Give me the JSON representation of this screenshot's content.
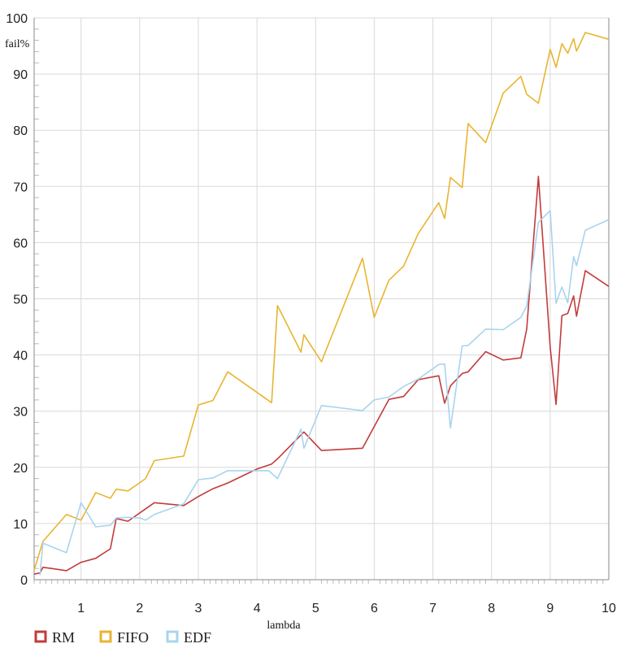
{
  "chart_data": {
    "type": "line",
    "title": "",
    "xlabel": "lambda",
    "ylabel": "fail%",
    "xlim": [
      0.2,
      10
    ],
    "ylim": [
      0,
      100
    ],
    "x_ticks": [
      1,
      2,
      3,
      4,
      5,
      6,
      7,
      8,
      9,
      10
    ],
    "y_ticks": [
      0,
      10,
      20,
      30,
      40,
      50,
      60,
      70,
      80,
      90,
      100
    ],
    "grid": true,
    "legend_position": "bottom-left",
    "series": [
      {
        "name": "RM",
        "color": "#c23b3b",
        "points": [
          [
            0.2,
            1
          ],
          [
            0.3,
            1.2
          ],
          [
            0.35,
            2.2
          ],
          [
            0.5,
            2
          ],
          [
            0.75,
            1.6
          ],
          [
            1.0,
            3.1
          ],
          [
            1.25,
            3.8
          ],
          [
            1.5,
            5.5
          ],
          [
            1.6,
            10.9
          ],
          [
            1.8,
            10.4
          ],
          [
            2.25,
            13.7
          ],
          [
            2.75,
            13.2
          ],
          [
            3.0,
            14.8
          ],
          [
            3.25,
            16.2
          ],
          [
            3.5,
            17.2
          ],
          [
            4.0,
            19.7
          ],
          [
            4.25,
            20.6
          ],
          [
            4.35,
            21.5
          ],
          [
            4.8,
            26.3
          ],
          [
            5.1,
            23
          ],
          [
            5.8,
            23.4
          ],
          [
            6.25,
            32.1
          ],
          [
            6.5,
            32.6
          ],
          [
            6.75,
            35.6
          ],
          [
            7.1,
            36.3
          ],
          [
            7.2,
            31.4
          ],
          [
            7.3,
            34.5
          ],
          [
            7.5,
            36.7
          ],
          [
            7.6,
            37
          ],
          [
            7.9,
            40.6
          ],
          [
            8.2,
            39.1
          ],
          [
            8.5,
            39.5
          ],
          [
            8.6,
            44.6
          ],
          [
            8.8,
            71.8
          ],
          [
            9.0,
            41.4
          ],
          [
            9.1,
            31.2
          ],
          [
            9.2,
            47
          ],
          [
            9.3,
            47.4
          ],
          [
            9.4,
            50.5
          ],
          [
            9.45,
            46.9
          ],
          [
            9.6,
            55
          ],
          [
            10.0,
            52.2
          ]
        ]
      },
      {
        "name": "FIFO",
        "color": "#e8b530",
        "points": [
          [
            0.2,
            1.7
          ],
          [
            0.35,
            6.8
          ],
          [
            0.75,
            11.6
          ],
          [
            1.0,
            10.6
          ],
          [
            1.25,
            15.5
          ],
          [
            1.5,
            14.5
          ],
          [
            1.6,
            16.1
          ],
          [
            1.8,
            15.8
          ],
          [
            2.1,
            18
          ],
          [
            2.25,
            21.2
          ],
          [
            2.75,
            22
          ],
          [
            3.0,
            31.1
          ],
          [
            3.25,
            31.9
          ],
          [
            3.5,
            37
          ],
          [
            4.25,
            31.5
          ],
          [
            4.35,
            48.8
          ],
          [
            4.75,
            40.5
          ],
          [
            4.8,
            43.6
          ],
          [
            5.1,
            38.8
          ],
          [
            5.8,
            57.2
          ],
          [
            6.0,
            46.7
          ],
          [
            6.25,
            53.3
          ],
          [
            6.5,
            55.8
          ],
          [
            6.75,
            61.6
          ],
          [
            7.1,
            67.1
          ],
          [
            7.2,
            64.3
          ],
          [
            7.3,
            71.6
          ],
          [
            7.5,
            69.8
          ],
          [
            7.6,
            81.2
          ],
          [
            7.9,
            77.8
          ],
          [
            8.2,
            86.6
          ],
          [
            8.5,
            89.6
          ],
          [
            8.6,
            86.4
          ],
          [
            8.8,
            84.8
          ],
          [
            9.0,
            94.4
          ],
          [
            9.1,
            91.2
          ],
          [
            9.2,
            95.4
          ],
          [
            9.3,
            93.7
          ],
          [
            9.4,
            96.3
          ],
          [
            9.45,
            94.1
          ],
          [
            9.6,
            97.4
          ],
          [
            10.0,
            96.2
          ]
        ]
      },
      {
        "name": "EDF",
        "color": "#a8d4ee",
        "points": [
          [
            0.3,
            0.8
          ],
          [
            0.35,
            6.5
          ],
          [
            0.75,
            4.8
          ],
          [
            1.0,
            13.7
          ],
          [
            1.25,
            9.4
          ],
          [
            1.5,
            9.7
          ],
          [
            1.6,
            11
          ],
          [
            1.8,
            11.1
          ],
          [
            2.0,
            11
          ],
          [
            2.1,
            10.6
          ],
          [
            2.25,
            11.6
          ],
          [
            2.75,
            13.5
          ],
          [
            3.0,
            17.8
          ],
          [
            3.25,
            18.1
          ],
          [
            3.5,
            19.4
          ],
          [
            4.2,
            19.4
          ],
          [
            4.35,
            18
          ],
          [
            4.75,
            26.8
          ],
          [
            4.8,
            23.4
          ],
          [
            5.1,
            31
          ],
          [
            5.8,
            30.1
          ],
          [
            6.0,
            32
          ],
          [
            6.25,
            32.5
          ],
          [
            6.5,
            34.4
          ],
          [
            6.75,
            35.7
          ],
          [
            7.1,
            38.3
          ],
          [
            7.2,
            38.4
          ],
          [
            7.3,
            27
          ],
          [
            7.5,
            41.6
          ],
          [
            7.6,
            41.7
          ],
          [
            7.9,
            44.6
          ],
          [
            8.2,
            44.5
          ],
          [
            8.5,
            46.7
          ],
          [
            8.6,
            48.7
          ],
          [
            8.8,
            63.6
          ],
          [
            9.0,
            65.7
          ],
          [
            9.1,
            49.2
          ],
          [
            9.2,
            52.1
          ],
          [
            9.3,
            49.3
          ],
          [
            9.4,
            57.5
          ],
          [
            9.45,
            55.9
          ],
          [
            9.6,
            62.2
          ],
          [
            10.0,
            64.1
          ]
        ]
      }
    ]
  }
}
